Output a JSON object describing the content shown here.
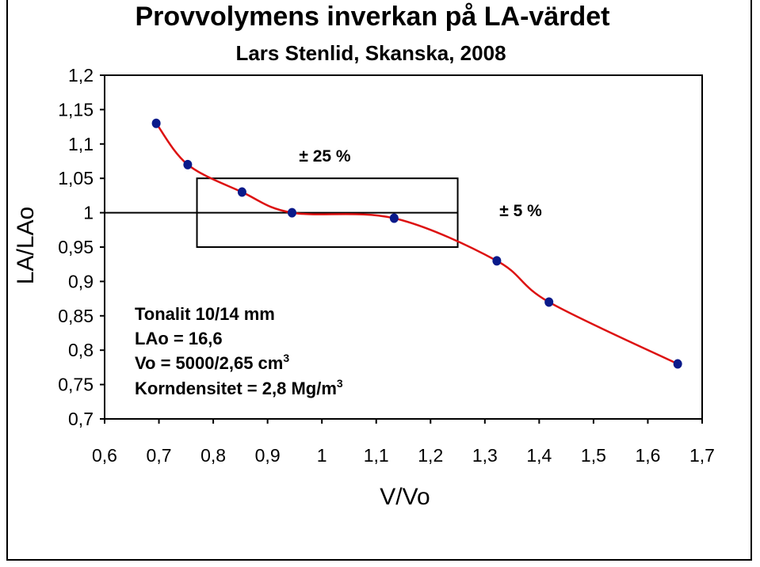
{
  "chart_data": {
    "type": "line",
    "title": "Provvolymens inverkan på LA-värdet",
    "subtitle": "Lars Stenlid, Skanska, 2008",
    "xlabel": "V/Vo",
    "ylabel": "LA/LAo",
    "xlim": [
      0.6,
      1.7
    ],
    "ylim": [
      0.7,
      1.2
    ],
    "x_ticks": [
      "0,6",
      "0,7",
      "0,8",
      "0,9",
      "1",
      "1,1",
      "1,2",
      "1,3",
      "1,4",
      "1,5",
      "1,6",
      "1,7"
    ],
    "y_ticks": [
      "0,7",
      "0,75",
      "0,8",
      "0,85",
      "0,9",
      "0,95",
      "1",
      "1,05",
      "1,1",
      "1,15",
      "1,2"
    ],
    "grid": false,
    "series": [
      {
        "color": "#dd1111",
        "marker_color": "#0a1a8a",
        "x": [
          0.695,
          0.753,
          0.853,
          0.945,
          1.133,
          1.322,
          1.418,
          1.655
        ],
        "y": [
          1.13,
          1.07,
          1.03,
          1.0,
          0.992,
          0.93,
          0.87,
          0.78
        ]
      }
    ],
    "reference_line": {
      "y": 1.0,
      "x_start": 0.6,
      "x_end": 1.25
    },
    "box": {
      "x0": 0.77,
      "x1": 1.25,
      "y0": 0.95,
      "y1": 1.05
    },
    "annotations": {
      "box_label": "± 25 %",
      "line_label": "± 5 %",
      "info_1": "Tonalit 10/14 mm",
      "info_2": "LAo = 16,6",
      "info_3": "Vo = 5000/2,65 cm",
      "info_3_sup": "3",
      "info_4": "Korndensitet = 2,8 Mg/m",
      "info_4_sup": "3"
    }
  }
}
